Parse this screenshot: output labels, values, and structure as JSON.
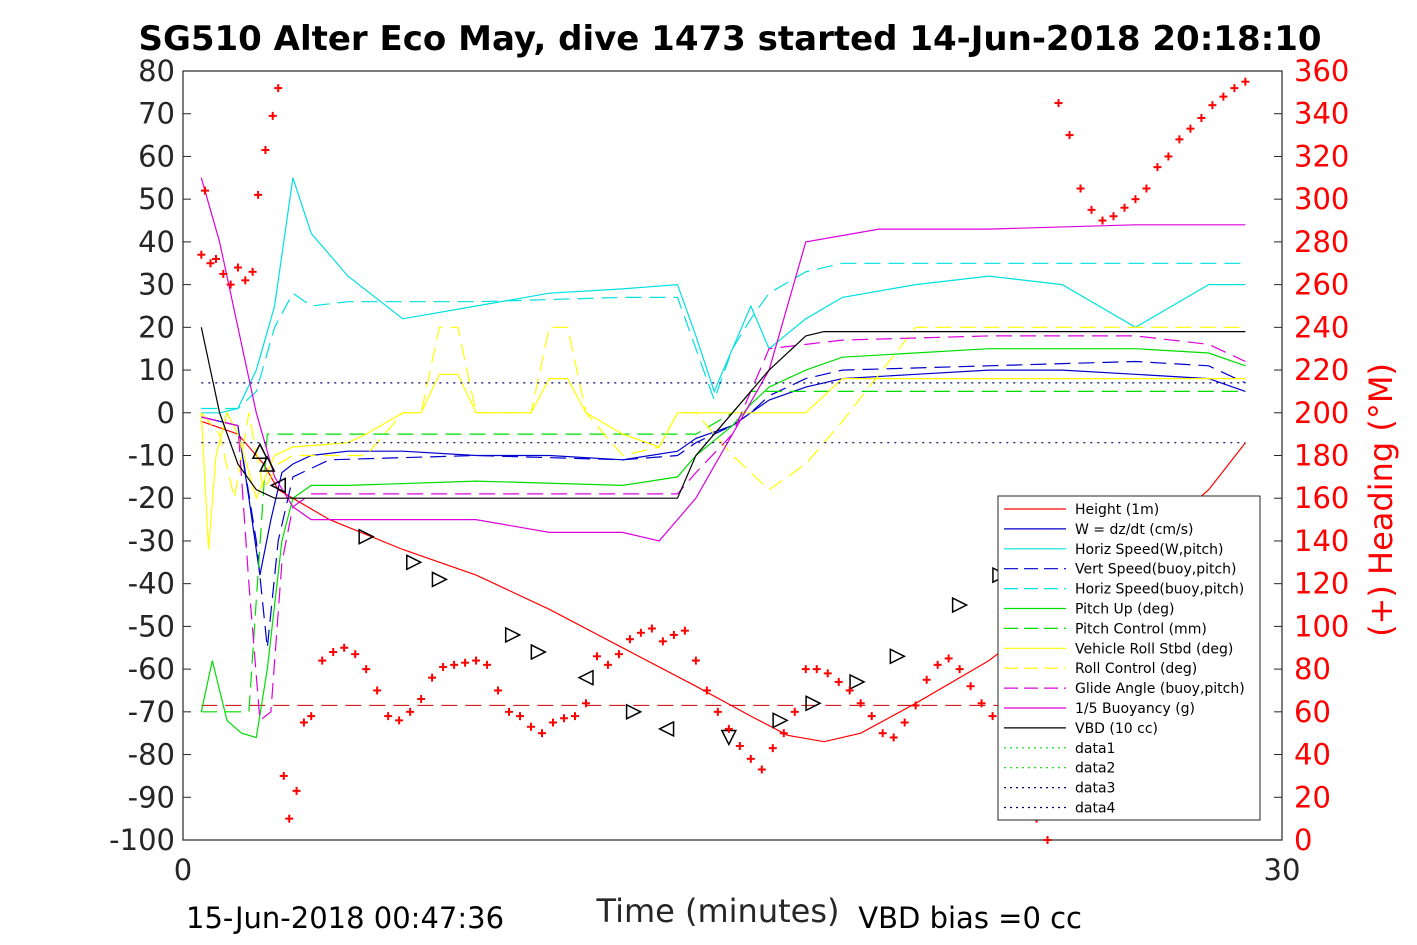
{
  "chart_data": {
    "type": "line",
    "title": "SG510 Alter Eco May, dive 1473 started 14-Jun-2018 20:18:10",
    "xlabel": "Time (minutes)",
    "ylabel": "",
    "y2label": "(+) Heading (°M)",
    "footer_left": "15-Jun-2018 00:47:36",
    "footer_right": "VBD bias =0 cc",
    "xlim": [
      0,
      30
    ],
    "ylim": [
      -100,
      80
    ],
    "y2lim": [
      0,
      360
    ],
    "x_ticks": [
      "0",
      "30"
    ],
    "y_ticks": [
      "80",
      "70",
      "60",
      "50",
      "40",
      "30",
      "20",
      "10",
      "0",
      "-10",
      "-20",
      "-30",
      "-40",
      "-50",
      "-60",
      "-70",
      "-80",
      "-90",
      "-100"
    ],
    "y2_ticks": [
      "360",
      "340",
      "320",
      "300",
      "280",
      "260",
      "240",
      "220",
      "200",
      "180",
      "160",
      "140",
      "120",
      "100",
      "80",
      "60",
      "40",
      "20",
      "0"
    ],
    "legend_position": "bottom-right",
    "series": [
      {
        "name": "Height (1m)",
        "color": "#ff0000",
        "dash": "solid",
        "x": [
          0.5,
          1.5,
          2.2,
          2.6,
          4.0,
          6.0,
          8.0,
          10.0,
          12.0,
          14.0,
          15.5,
          16.5,
          17.5,
          18.5,
          20.0,
          22.0,
          24.0,
          26.0,
          28.0,
          29.0
        ],
        "y": [
          -2,
          -5,
          -12,
          -18,
          -25,
          -32,
          -38,
          -46,
          -55,
          -64,
          -71,
          -75.5,
          -77,
          -75,
          -68,
          -58,
          -45,
          -33,
          -18,
          -7
        ]
      },
      {
        "name": "W = dz/dt (cm/s)",
        "color": "#0000cc",
        "dash": "solid",
        "x": [
          0.5,
          1.0,
          1.5,
          1.8,
          2.1,
          2.4,
          2.7,
          3.0,
          3.5,
          4.5,
          6,
          8,
          10,
          12,
          13.5,
          14,
          15,
          15.5,
          16,
          17,
          18,
          20,
          22,
          24,
          26,
          28,
          29
        ],
        "y": [
          -1,
          -2,
          -3,
          -20,
          -38,
          -25,
          -14,
          -12,
          -10,
          -9,
          -9,
          -10,
          -10,
          -11,
          -9,
          -6,
          -3,
          0,
          3,
          6,
          8,
          9,
          10,
          10,
          9,
          8,
          5
        ]
      },
      {
        "name": "Horiz Speed(W,pitch)",
        "color": "#00e0e0",
        "dash": "solid",
        "x": [
          0.5,
          1.0,
          1.5,
          2.0,
          2.5,
          3.0,
          3.5,
          4.5,
          6,
          8,
          10,
          12,
          13.5,
          14,
          14.5,
          15,
          15.5,
          16,
          17,
          18,
          20,
          22,
          24,
          26,
          28,
          29
        ],
        "y": [
          0,
          0,
          1,
          10,
          25,
          55,
          42,
          32,
          22,
          25,
          28,
          29,
          30,
          18,
          5,
          15,
          25,
          15,
          22,
          27,
          30,
          32,
          30,
          20,
          30,
          30
        ]
      },
      {
        "name": "Vert Speed(buoy,pitch)",
        "color": "#0000cc",
        "dash": "dashed",
        "x": [
          0.5,
          1.0,
          1.5,
          2.0,
          2.3,
          2.6,
          3.0,
          4,
          8,
          12,
          13.5,
          14,
          15,
          15.5,
          16,
          17,
          18,
          22,
          26,
          28,
          29
        ],
        "y": [
          -1,
          -2,
          -3,
          -30,
          -55,
          -30,
          -15,
          -11,
          -10,
          -11,
          -10,
          -7,
          -3,
          0,
          4,
          8,
          10,
          11,
          12,
          11,
          7
        ]
      },
      {
        "name": "Horiz Speed(buoy,pitch)",
        "color": "#00e0e0",
        "dash": "dashed",
        "x": [
          0.5,
          1.5,
          2.0,
          2.5,
          3.0,
          3.5,
          4.5,
          8,
          12,
          13.5,
          14,
          14.5,
          15,
          15.5,
          16,
          17,
          18,
          22,
          26,
          28,
          29
        ],
        "y": [
          1,
          1,
          5,
          20,
          28,
          25,
          26,
          26,
          27,
          27,
          15,
          3,
          15,
          22,
          28,
          33,
          35,
          35,
          35,
          35,
          35
        ]
      },
      {
        "name": "Pitch Up (deg)",
        "color": "#00dd00",
        "dash": "solid",
        "x": [
          0.5,
          0.8,
          1.2,
          1.6,
          2.0,
          2.3,
          2.7,
          3.0,
          3.5,
          4.5,
          8,
          12,
          13.5,
          14,
          15,
          15.5,
          16,
          17,
          18,
          22,
          26,
          28,
          29
        ],
        "y": [
          -70,
          -58,
          -72,
          -75,
          -76,
          -60,
          -30,
          -20,
          -17,
          -17,
          -16,
          -17,
          -15,
          -10,
          -3,
          2,
          6,
          10,
          13,
          15,
          15,
          14,
          11
        ]
      },
      {
        "name": "Pitch Control (mm)",
        "color": "#00dd00",
        "dash": "dashed",
        "x": [
          0.5,
          1.8,
          2.3,
          3.0,
          8,
          12,
          13.5,
          14.0,
          15.0,
          15.5,
          29
        ],
        "y": [
          -70,
          -70,
          -5,
          -5,
          -5,
          -5,
          -5,
          -5,
          0,
          5,
          5
        ]
      },
      {
        "name": "Vehicle Roll Stbd (deg)",
        "color": "#ffff00",
        "dash": "solid",
        "x": [
          0.5,
          0.7,
          0.9,
          1.2,
          1.5,
          2.0,
          2.5,
          3.0,
          4.5,
          5.0,
          6.0,
          6.5,
          7.0,
          7.5,
          8.0,
          9.0,
          9.5,
          10.0,
          10.5,
          11.0,
          12.0,
          13.0,
          13.5,
          14.0,
          15.0,
          16.0,
          17.0,
          18.0,
          20.0,
          22.0,
          24.0,
          26.0,
          28.0,
          29.0
        ],
        "y": [
          0,
          -32,
          -10,
          0,
          -5,
          -20,
          -10,
          -8,
          -7,
          -5,
          0,
          0,
          9,
          9,
          0,
          0,
          0,
          8,
          8,
          0,
          -5,
          -8,
          0,
          0,
          0,
          0,
          0,
          8,
          8,
          8,
          8,
          8,
          8,
          8
        ]
      },
      {
        "name": "Roll Control (deg)",
        "color": "#ffff00",
        "dash": "dashed",
        "x": [
          0.5,
          0.8,
          1.0,
          1.4,
          1.8,
          2.2,
          2.6,
          3.0,
          5.0,
          6.0,
          6.5,
          7.0,
          7.5,
          8.0,
          8.5,
          9.0,
          9.5,
          10.0,
          10.5,
          11.0,
          12.0,
          13.0,
          13.5,
          14.0,
          15.0,
          16.0,
          17.0,
          18.0,
          20.0,
          22.0,
          24.0,
          26.0,
          28.0,
          29.0
        ],
        "y": [
          0,
          -3,
          -5,
          -20,
          0,
          -18,
          -12,
          -10,
          -10,
          0,
          0,
          20,
          20,
          0,
          0,
          0,
          0,
          20,
          20,
          0,
          -10,
          -8,
          0,
          0,
          -10,
          -18,
          -12,
          -2,
          20,
          20,
          20,
          20,
          20,
          20
        ]
      },
      {
        "name": "Glide Angle (buoy,pitch)",
        "color": "#dd00dd",
        "dash": "dashed",
        "x": [
          0.5,
          1.0,
          1.5,
          1.8,
          2.1,
          2.4,
          2.7,
          3.0,
          3.5,
          4.5,
          8,
          12,
          13.5,
          14,
          15,
          15.5,
          16,
          17,
          18,
          22,
          26,
          28,
          29
        ],
        "y": [
          -1,
          -2,
          -3,
          -40,
          -72,
          -70,
          -35,
          -22,
          -19,
          -19,
          -19,
          -19,
          -19,
          -14,
          -5,
          5,
          15,
          16,
          17,
          18,
          18,
          16,
          12
        ]
      },
      {
        "name": "1/5 Buoyancy (g)",
        "color": "#dd00dd",
        "dash": "solid",
        "x": [
          0.5,
          1.0,
          1.5,
          2.0,
          2.5,
          3.0,
          3.5,
          8,
          10,
          12,
          13,
          13.5,
          14,
          15,
          16,
          17,
          19,
          22,
          26,
          29
        ],
        "y": [
          55,
          40,
          20,
          0,
          -15,
          -22,
          -25,
          -25,
          -28,
          -28,
          -30,
          -25,
          -20,
          -5,
          10,
          40,
          43,
          43,
          44,
          44
        ]
      },
      {
        "name": "VBD (10 cc)",
        "color": "#000000",
        "dash": "solid",
        "x": [
          0.5,
          1.0,
          1.5,
          2.0,
          2.5,
          3.0,
          8.0,
          12.0,
          13.0,
          13.5,
          14.0,
          15.0,
          15.5,
          16.0,
          17.0,
          17.5,
          20.0,
          24.0,
          29.0
        ],
        "y": [
          20,
          0,
          -12,
          -18,
          -20,
          -20,
          -20,
          -20,
          -20,
          -20,
          -10,
          0,
          5,
          10,
          18,
          19,
          19,
          19,
          19
        ]
      },
      {
        "name": "data1",
        "color": "#00dd00",
        "dash": "dotted",
        "x": [],
        "y": []
      },
      {
        "name": "data2",
        "color": "#00dd00",
        "dash": "dotted",
        "x": [],
        "y": []
      },
      {
        "name": "data3",
        "color": "#000066",
        "dash": "dotted",
        "x": [
          0.5,
          29
        ],
        "y": [
          7,
          7
        ]
      },
      {
        "name": "data4",
        "color": "#000066",
        "dash": "dotted",
        "x": [
          0.5,
          29
        ],
        "y": [
          -7,
          -7
        ]
      }
    ],
    "reference_lines": [
      {
        "color": "#cc0000",
        "dash": "dashed",
        "y2": 63,
        "x": [
          0.5,
          29
        ]
      }
    ],
    "heading_points": {
      "name": "(+) Heading (°M)",
      "color": "#ff0000",
      "x": [
        0.5,
        0.6,
        0.75,
        0.9,
        1.1,
        1.3,
        1.5,
        1.7,
        1.9,
        2.05,
        2.25,
        2.45,
        2.6,
        2.75,
        2.9,
        3.1,
        3.3,
        3.5,
        3.8,
        4.1,
        4.4,
        4.7,
        5.0,
        5.3,
        5.6,
        5.9,
        6.2,
        6.5,
        6.8,
        7.1,
        7.4,
        7.7,
        8.0,
        8.3,
        8.6,
        8.9,
        9.2,
        9.5,
        9.8,
        10.1,
        10.4,
        10.7,
        11.0,
        11.3,
        11.6,
        11.9,
        12.2,
        12.5,
        12.8,
        13.1,
        13.4,
        13.7,
        14.0,
        14.3,
        14.6,
        14.9,
        15.2,
        15.5,
        15.8,
        16.1,
        16.4,
        16.7,
        17.0,
        17.3,
        17.6,
        17.9,
        18.2,
        18.5,
        18.8,
        19.1,
        19.4,
        19.7,
        20.0,
        20.3,
        20.6,
        20.9,
        21.2,
        21.5,
        21.8,
        22.1,
        22.4,
        22.7,
        23.0,
        23.3,
        23.6,
        23.9,
        24.2,
        24.5,
        24.8,
        25.1,
        25.4,
        25.7,
        26.0,
        26.3,
        26.6,
        26.9,
        27.2,
        27.5,
        27.8,
        28.1,
        28.4,
        28.7,
        29.0
      ],
      "y": [
        274,
        304,
        270,
        272,
        265,
        260,
        268,
        262,
        266,
        302,
        323,
        339,
        352,
        30,
        10,
        23,
        55,
        58,
        84,
        88,
        90,
        87,
        80,
        70,
        58,
        56,
        60,
        66,
        76,
        81,
        82,
        83,
        84,
        82,
        70,
        60,
        58,
        53,
        50,
        55,
        57,
        58,
        64,
        86,
        82,
        87,
        94,
        97,
        99,
        93,
        96,
        98,
        84,
        70,
        60,
        52,
        44,
        38,
        33,
        43,
        50,
        60,
        80,
        80,
        78,
        74,
        70,
        64,
        58,
        50,
        48,
        55,
        63,
        75,
        82,
        85,
        80,
        72,
        64,
        58,
        40,
        30,
        20,
        10,
        0,
        345,
        330,
        305,
        295,
        290,
        292,
        296,
        300,
        305,
        315,
        320,
        328,
        333,
        338,
        344,
        348,
        352,
        355
      ]
    },
    "markers": {
      "shape": "triangles",
      "color": "#000000",
      "points": [
        {
          "x": 2.1,
          "y": -9,
          "dir": "up"
        },
        {
          "x": 2.3,
          "y": -12,
          "dir": "up"
        },
        {
          "x": 2.6,
          "y": -17,
          "dir": "left"
        },
        {
          "x": 5.0,
          "y": -29,
          "dir": "right"
        },
        {
          "x": 6.3,
          "y": -35,
          "dir": "right"
        },
        {
          "x": 7.0,
          "y": -39,
          "dir": "right"
        },
        {
          "x": 9.0,
          "y": -52,
          "dir": "right"
        },
        {
          "x": 9.7,
          "y": -56,
          "dir": "right"
        },
        {
          "x": 11.0,
          "y": -62,
          "dir": "left"
        },
        {
          "x": 12.3,
          "y": -70,
          "dir": "right"
        },
        {
          "x": 13.2,
          "y": -74,
          "dir": "left"
        },
        {
          "x": 14.9,
          "y": -76,
          "dir": "down"
        },
        {
          "x": 16.3,
          "y": -72,
          "dir": "right"
        },
        {
          "x": 17.2,
          "y": -68,
          "dir": "right"
        },
        {
          "x": 18.4,
          "y": -63,
          "dir": "right"
        },
        {
          "x": 19.5,
          "y": -57,
          "dir": "right"
        },
        {
          "x": 21.2,
          "y": -45,
          "dir": "right"
        },
        {
          "x": 22.3,
          "y": -38,
          "dir": "right"
        },
        {
          "x": 23.5,
          "y": -30,
          "dir": "right"
        },
        {
          "x": 24.2,
          "y": -27,
          "dir": "right"
        }
      ]
    }
  }
}
